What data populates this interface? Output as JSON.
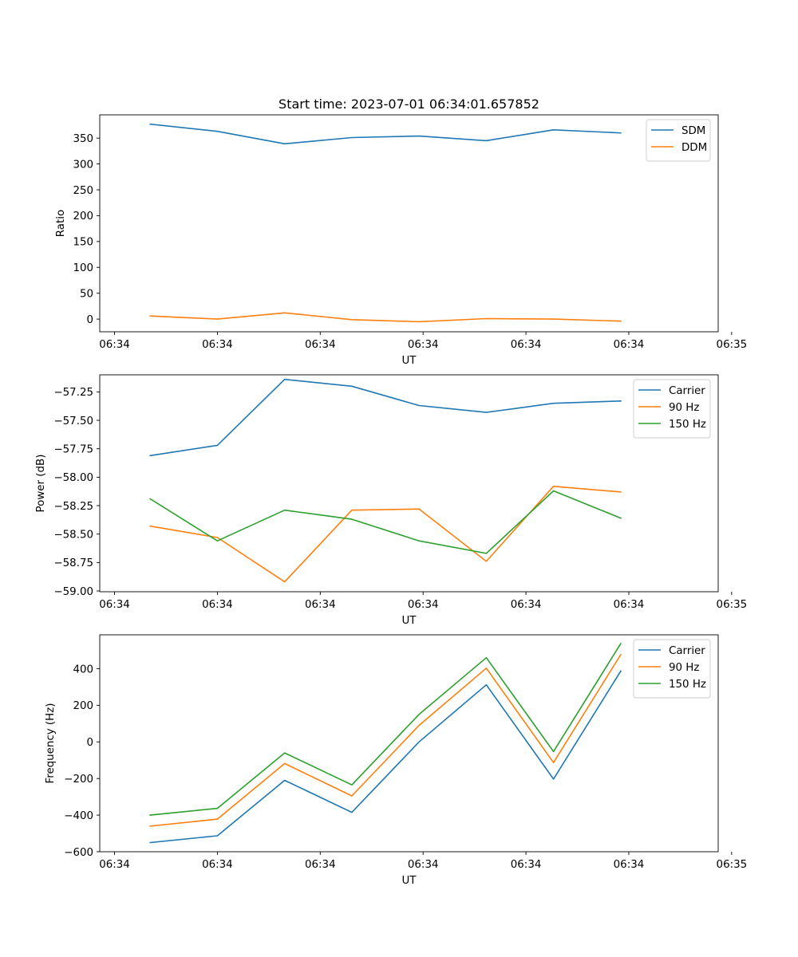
{
  "figure": {
    "title": "Start time: 2023-07-01 06:34:01.657852"
  },
  "colors": {
    "blue": "#1f77b4",
    "orange": "#ff7f0e",
    "green": "#2ca02c"
  },
  "chart_data": [
    {
      "type": "line",
      "title": "Start time: 2023-07-01 06:34:01.657852",
      "xlabel": "UT",
      "ylabel": "Ratio",
      "x": [
        1,
        2,
        3,
        4,
        5,
        6,
        7,
        8
      ],
      "xlim": [
        0.25,
        9.45
      ],
      "xticks": [
        0.47,
        2.0,
        3.53,
        5.06,
        6.59,
        8.12,
        9.65
      ],
      "xtick_labels": [
        "06:34",
        "06:34",
        "06:34",
        "06:34",
        "06:34",
        "06:34",
        "06:35"
      ],
      "ylim": [
        -24.5,
        395
      ],
      "yticks": [
        0,
        50,
        100,
        150,
        200,
        250,
        300,
        350
      ],
      "ytick_labels": [
        "0",
        "50",
        "100",
        "150",
        "200",
        "250",
        "300",
        "350"
      ],
      "legend": "upper right",
      "series": [
        {
          "name": "SDM",
          "color": "#1f77b4",
          "values": [
            377,
            363,
            339,
            351,
            354,
            345,
            366,
            360
          ]
        },
        {
          "name": "DDM",
          "color": "#ff7f0e",
          "values": [
            6,
            0,
            12,
            -1,
            -5,
            1,
            0,
            -4
          ]
        }
      ]
    },
    {
      "type": "line",
      "title": "",
      "xlabel": "UT",
      "ylabel": "Power (dB)",
      "x": [
        1,
        2,
        3,
        4,
        5,
        6,
        7,
        8
      ],
      "xlim": [
        0.25,
        9.45
      ],
      "xticks": [
        0.47,
        2.0,
        3.53,
        5.06,
        6.59,
        8.12,
        9.65
      ],
      "xtick_labels": [
        "06:34",
        "06:34",
        "06:34",
        "06:34",
        "06:34",
        "06:34",
        "06:35"
      ],
      "ylim": [
        -59.007,
        -57.1
      ],
      "yticks": [
        -59.0,
        -58.75,
        -58.5,
        -58.25,
        -58.0,
        -57.75,
        -57.5,
        -57.25
      ],
      "ytick_labels": [
        "−59.00",
        "−58.75",
        "−58.50",
        "−58.25",
        "−58.00",
        "−57.75",
        "−57.50",
        "−57.25"
      ],
      "legend": "upper right",
      "series": [
        {
          "name": "Carrier",
          "color": "#1f77b4",
          "values": [
            -57.81,
            -57.72,
            -57.14,
            -57.2,
            -57.37,
            -57.43,
            -57.35,
            -57.33
          ]
        },
        {
          "name": "90 Hz",
          "color": "#ff7f0e",
          "values": [
            -58.43,
            -58.53,
            -58.92,
            -58.29,
            -58.28,
            -58.74,
            -58.08,
            -58.13
          ]
        },
        {
          "name": "150 Hz",
          "color": "#2ca02c",
          "values": [
            -58.19,
            -58.56,
            -58.29,
            -58.37,
            -58.56,
            -58.67,
            -58.12,
            -58.36
          ]
        }
      ]
    },
    {
      "type": "line",
      "title": "",
      "xlabel": "UT",
      "ylabel": "Frequency (Hz)",
      "x": [
        1,
        2,
        3,
        4,
        5,
        6,
        7,
        8
      ],
      "xlim": [
        0.25,
        9.45
      ],
      "xticks": [
        0.47,
        2.0,
        3.53,
        5.06,
        6.59,
        8.12,
        9.65
      ],
      "xtick_labels": [
        "06:34",
        "06:34",
        "06:34",
        "06:34",
        "06:34",
        "06:34",
        "06:35"
      ],
      "ylim": [
        -600,
        585
      ],
      "yticks": [
        -600,
        -400,
        -200,
        0,
        200,
        400
      ],
      "ytick_labels": [
        "−600",
        "−400",
        "−200",
        "0",
        "200",
        "400"
      ],
      "legend": "upper right",
      "series": [
        {
          "name": "Carrier",
          "color": "#1f77b4",
          "values": [
            -550,
            -513,
            -210,
            -385,
            0,
            312,
            -203,
            387
          ]
        },
        {
          "name": "90 Hz",
          "color": "#ff7f0e",
          "values": [
            -460,
            -422,
            -118,
            -295,
            90,
            403,
            -113,
            477
          ]
        },
        {
          "name": "150 Hz",
          "color": "#2ca02c",
          "values": [
            -400,
            -363,
            -60,
            -235,
            150,
            460,
            -53,
            537
          ]
        }
      ]
    }
  ]
}
